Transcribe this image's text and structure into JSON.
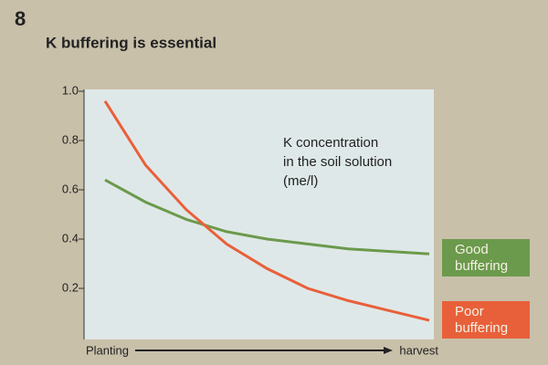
{
  "slide_number": "8",
  "chart_data": {
    "type": "line",
    "title": "K buffering is essential",
    "annotation": [
      "K concentration",
      "in the soil solution",
      "(me/l)"
    ],
    "x_labels": [
      "Planting",
      "harvest"
    ],
    "categories": [
      null,
      null,
      null,
      null,
      null,
      null,
      null,
      null,
      null
    ],
    "series": [
      {
        "name": "Good buffering",
        "color": "#6b9a4c",
        "values": [
          0.64,
          0.55,
          0.48,
          0.43,
          0.4,
          0.38,
          0.36,
          0.35,
          0.34
        ]
      },
      {
        "name": "Poor buffering",
        "color": "#e8603a",
        "values": [
          0.96,
          0.7,
          0.52,
          0.38,
          0.28,
          0.2,
          0.15,
          0.11,
          0.07
        ]
      }
    ],
    "ylim": [
      0,
      1
    ],
    "yticks": [
      {
        "value": 1,
        "label": "1.0"
      },
      0.8,
      0.6,
      0.4,
      0.2
    ]
  }
}
